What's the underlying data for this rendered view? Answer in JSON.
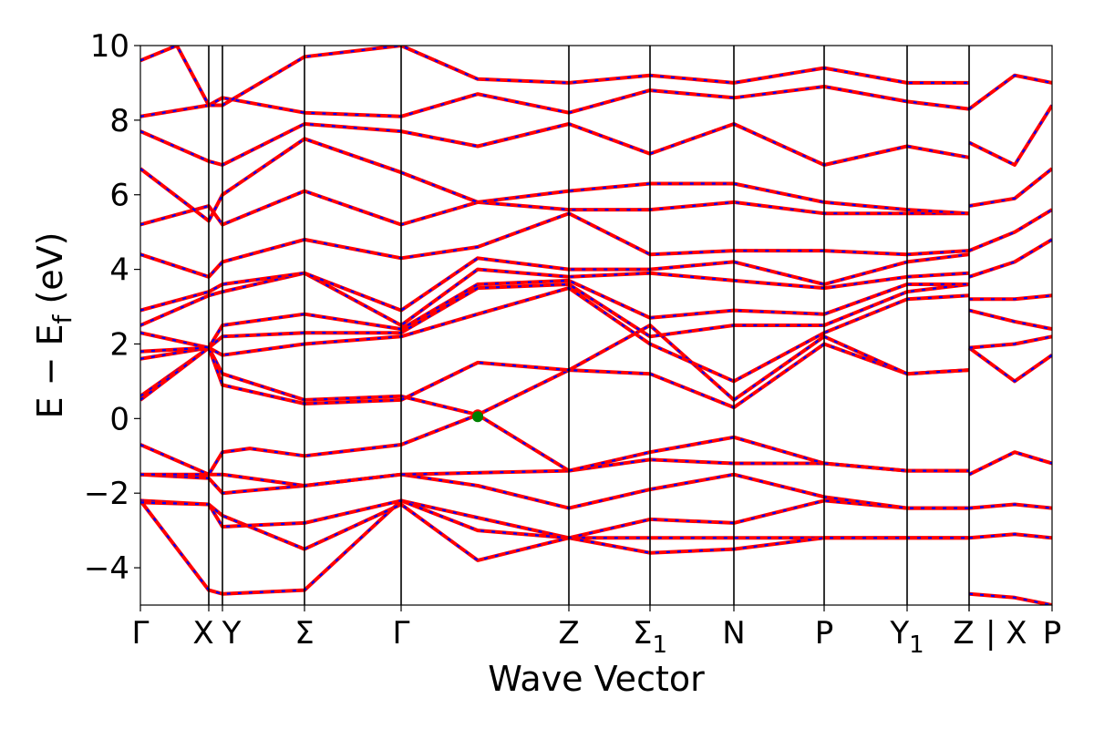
{
  "chart_data": {
    "type": "line",
    "title": "",
    "xlabel": "Wave Vector",
    "ylabel": {
      "prefix": "E − E",
      "subscript": "f",
      "suffix": " (eV)"
    },
    "ylim": [
      -5,
      10
    ],
    "yticks": [
      -4,
      -2,
      0,
      2,
      4,
      6,
      8,
      10
    ],
    "ytick_labels": [
      "−4",
      "−2",
      "0",
      "2",
      "4",
      "6",
      "8",
      "10"
    ],
    "grid": false,
    "legend": "none",
    "x_range": [
      0,
      1.0
    ],
    "kpoints": [
      {
        "label": "Γ",
        "x": 0.0
      },
      {
        "label": "X",
        "x": 0.075
      },
      {
        "label": "Y",
        "x": 0.09
      },
      {
        "label": "Σ",
        "x": 0.18
      },
      {
        "label": "Γ",
        "x": 0.286
      },
      {
        "label": "Z",
        "x": 0.47
      },
      {
        "label": "Σ",
        "sub": "1",
        "x": 0.559
      },
      {
        "label": "N",
        "x": 0.651
      },
      {
        "label": "P",
        "x": 0.75
      },
      {
        "label": "Y",
        "sub": "1",
        "x": 0.841
      },
      {
        "label": "Z",
        "x": 0.909
      },
      {
        "label": "| X",
        "x": 0.909
      },
      {
        "label": "P",
        "x": 1.0
      }
    ],
    "colors": {
      "dft": "#ff0000",
      "wannier": "#0000ff",
      "marker_red": "#ff0000",
      "marker_green": "#008000"
    },
    "series": [
      {
        "x": [
          0,
          0.075,
          0.09,
          0.18,
          0.286,
          0.47,
          0.559,
          0.651,
          0.75,
          0.841,
          0.909
        ],
        "y": [
          -2.2,
          -4.6,
          -4.7,
          -4.6,
          -2.2,
          -3.2,
          -3.2,
          -3.2,
          -3.2,
          -3.2,
          -3.2
        ]
      },
      {
        "x": [
          0,
          0.075,
          0.09,
          0.18,
          0.286,
          0.37,
          0.47,
          0.559,
          0.651,
          0.75,
          0.841,
          0.909
        ],
        "y": [
          -2.2,
          -2.3,
          -2.6,
          -3.5,
          -2.3,
          -3.8,
          -3.2,
          -3.6,
          -3.5,
          -3.2,
          -3.2,
          -3.2
        ]
      },
      {
        "x": [
          0,
          0.075,
          0.09,
          0.18,
          0.286,
          0.37,
          0.47,
          0.559,
          0.651,
          0.75,
          0.841,
          0.909
        ],
        "y": [
          -2.25,
          -2.3,
          -2.9,
          -2.8,
          -2.2,
          -3.0,
          -3.2,
          -2.7,
          -2.8,
          -2.2,
          -2.4,
          -2.4
        ]
      },
      {
        "x": [
          0,
          0.075,
          0.09,
          0.18,
          0.286,
          0.37,
          0.47,
          0.559,
          0.651,
          0.75,
          0.841,
          0.909
        ],
        "y": [
          -1.5,
          -1.6,
          -2.0,
          -1.8,
          -1.5,
          -1.8,
          -2.4,
          -1.9,
          -1.5,
          -2.1,
          -2.4,
          -2.4
        ]
      },
      {
        "x": [
          0,
          0.075,
          0.09,
          0.18,
          0.286,
          0.47,
          0.559,
          0.651,
          0.75,
          0.841,
          0.909
        ],
        "y": [
          -1.5,
          -1.5,
          -1.5,
          -1.8,
          -1.5,
          -1.4,
          -1.1,
          -1.2,
          -1.2,
          -1.4,
          -1.4
        ]
      },
      {
        "x": [
          0,
          0.075,
          0.09,
          0.12,
          0.18,
          0.286,
          0.37,
          0.47,
          0.559,
          0.651,
          0.75,
          0.841,
          0.909
        ],
        "y": [
          -0.7,
          -1.5,
          -0.9,
          -0.8,
          -1.0,
          -0.7,
          0.1,
          -1.4,
          -0.9,
          -0.5,
          -1.2,
          -1.4,
          -1.4
        ]
      },
      {
        "x": [
          0,
          0.075,
          0.09,
          0.18,
          0.286,
          0.37,
          0.47,
          0.559,
          0.651,
          0.75,
          0.841,
          0.909
        ],
        "y": [
          0.6,
          1.9,
          1.2,
          0.5,
          0.6,
          0.1,
          1.3,
          1.2,
          0.3,
          2.0,
          1.2,
          1.3
        ]
      },
      {
        "x": [
          0,
          0.075,
          0.09,
          0.18,
          0.286,
          0.37,
          0.47,
          0.559,
          0.651,
          0.75,
          0.841,
          0.909
        ],
        "y": [
          0.5,
          1.9,
          0.9,
          0.4,
          0.5,
          1.5,
          1.3,
          2.5,
          0.5,
          2.2,
          1.2,
          1.3
        ]
      },
      {
        "x": [
          0,
          0.075,
          0.09,
          0.18,
          0.286,
          0.37,
          0.47,
          0.559,
          0.651,
          0.75,
          0.841,
          0.909
        ],
        "y": [
          1.6,
          1.9,
          1.7,
          2.0,
          2.2,
          2.8,
          3.5,
          2.0,
          1.0,
          2.3,
          3.2,
          3.3
        ]
      },
      {
        "x": [
          0,
          0.075,
          0.09,
          0.18,
          0.286,
          0.37,
          0.47,
          0.559,
          0.651,
          0.75,
          0.841,
          0.909
        ],
        "y": [
          1.8,
          1.9,
          2.2,
          2.3,
          2.3,
          3.5,
          3.6,
          2.2,
          2.5,
          2.5,
          3.4,
          3.6
        ]
      },
      {
        "x": [
          0,
          0.075,
          0.09,
          0.18,
          0.286,
          0.37,
          0.47,
          0.559,
          0.651,
          0.75,
          0.841,
          0.909
        ],
        "y": [
          2.3,
          1.9,
          2.5,
          2.8,
          2.4,
          3.6,
          3.7,
          2.7,
          2.9,
          2.8,
          3.6,
          3.6
        ]
      },
      {
        "x": [
          0,
          0.075,
          0.09,
          0.18,
          0.286,
          0.37,
          0.47,
          0.559,
          0.651,
          0.75,
          0.841,
          0.909
        ],
        "y": [
          2.5,
          3.3,
          3.4,
          3.9,
          2.5,
          4.0,
          3.8,
          3.9,
          3.7,
          3.5,
          3.8,
          3.9
        ]
      },
      {
        "x": [
          0,
          0.075,
          0.09,
          0.18,
          0.286,
          0.37,
          0.47,
          0.559,
          0.651,
          0.75,
          0.841,
          0.909
        ],
        "y": [
          2.9,
          3.4,
          3.6,
          3.9,
          2.9,
          4.3,
          4.0,
          4.0,
          4.2,
          3.6,
          4.2,
          4.4
        ]
      },
      {
        "x": [
          0,
          0.075,
          0.09,
          0.18,
          0.286,
          0.37,
          0.47,
          0.559,
          0.651,
          0.75,
          0.841,
          0.909
        ],
        "y": [
          4.4,
          3.8,
          4.2,
          4.8,
          4.3,
          4.6,
          5.5,
          4.4,
          4.5,
          4.5,
          4.4,
          4.5
        ]
      },
      {
        "x": [
          0,
          0.075,
          0.09,
          0.18,
          0.286,
          0.37,
          0.47,
          0.559,
          0.651,
          0.75,
          0.841,
          0.909
        ],
        "y": [
          5.2,
          5.7,
          5.2,
          6.1,
          5.2,
          5.8,
          5.6,
          5.6,
          5.8,
          5.5,
          5.5,
          5.5
        ]
      },
      {
        "x": [
          0,
          0.075,
          0.09,
          0.18,
          0.286,
          0.37,
          0.47,
          0.559,
          0.651,
          0.75,
          0.841,
          0.909
        ],
        "y": [
          6.7,
          5.3,
          6.0,
          7.5,
          6.6,
          5.8,
          6.1,
          6.3,
          6.3,
          5.8,
          5.6,
          5.5
        ]
      },
      {
        "x": [
          0,
          0.075,
          0.09,
          0.18,
          0.286,
          0.37,
          0.47,
          0.559,
          0.651,
          0.75,
          0.841,
          0.909
        ],
        "y": [
          7.7,
          6.9,
          6.8,
          7.9,
          7.7,
          7.3,
          7.9,
          7.1,
          7.9,
          6.8,
          7.3,
          7.0
        ]
      },
      {
        "x": [
          0,
          0.075,
          0.09,
          0.18,
          0.286,
          0.37,
          0.47,
          0.559,
          0.651,
          0.75,
          0.841,
          0.909
        ],
        "y": [
          8.1,
          8.4,
          8.6,
          8.2,
          8.1,
          8.7,
          8.2,
          8.8,
          8.6,
          8.9,
          8.5,
          8.3
        ]
      },
      {
        "x": [
          0,
          0.04,
          0.075,
          0.09,
          0.18,
          0.286,
          0.37,
          0.47,
          0.559,
          0.651,
          0.75,
          0.841,
          0.909
        ],
        "y": [
          9.6,
          10.0,
          8.4,
          8.4,
          9.7,
          10.0,
          9.1,
          9.0,
          9.2,
          9.0,
          9.4,
          9.0,
          9.0
        ]
      },
      {
        "x": [
          0.909,
          0.959,
          1.0
        ],
        "y": [
          -4.7,
          -4.8,
          -5.0
        ]
      },
      {
        "x": [
          0.909,
          0.959,
          1.0
        ],
        "y": [
          -3.2,
          -3.1,
          -3.2
        ]
      },
      {
        "x": [
          0.909,
          0.959,
          1.0
        ],
        "y": [
          -2.4,
          -2.3,
          -2.4
        ]
      },
      {
        "x": [
          0.909,
          0.959,
          1.0
        ],
        "y": [
          -1.5,
          -0.9,
          -1.2
        ]
      },
      {
        "x": [
          0.909,
          0.959,
          1.0
        ],
        "y": [
          1.9,
          1.0,
          1.7
        ]
      },
      {
        "x": [
          0.909,
          0.959,
          1.0
        ],
        "y": [
          1.9,
          2.0,
          2.2
        ]
      },
      {
        "x": [
          0.909,
          0.959,
          1.0
        ],
        "y": [
          2.9,
          2.6,
          2.4
        ]
      },
      {
        "x": [
          0.909,
          0.959,
          1.0
        ],
        "y": [
          3.2,
          3.2,
          3.3
        ]
      },
      {
        "x": [
          0.909,
          0.959,
          1.0
        ],
        "y": [
          3.8,
          4.2,
          4.8
        ]
      },
      {
        "x": [
          0.909,
          0.959,
          1.0
        ],
        "y": [
          4.5,
          5.0,
          5.6
        ]
      },
      {
        "x": [
          0.909,
          0.959,
          1.0
        ],
        "y": [
          5.7,
          5.9,
          6.7
        ]
      },
      {
        "x": [
          0.909,
          0.959,
          1.0
        ],
        "y": [
          7.4,
          6.8,
          8.4
        ]
      },
      {
        "x": [
          0.909,
          0.959,
          1.0
        ],
        "y": [
          8.3,
          9.2,
          9.0
        ]
      }
    ],
    "markers": [
      {
        "x": 0.37,
        "y": 0.1,
        "color": "#ff0000"
      },
      {
        "x": 0.37,
        "y": 0.05,
        "color": "#008000"
      }
    ]
  }
}
